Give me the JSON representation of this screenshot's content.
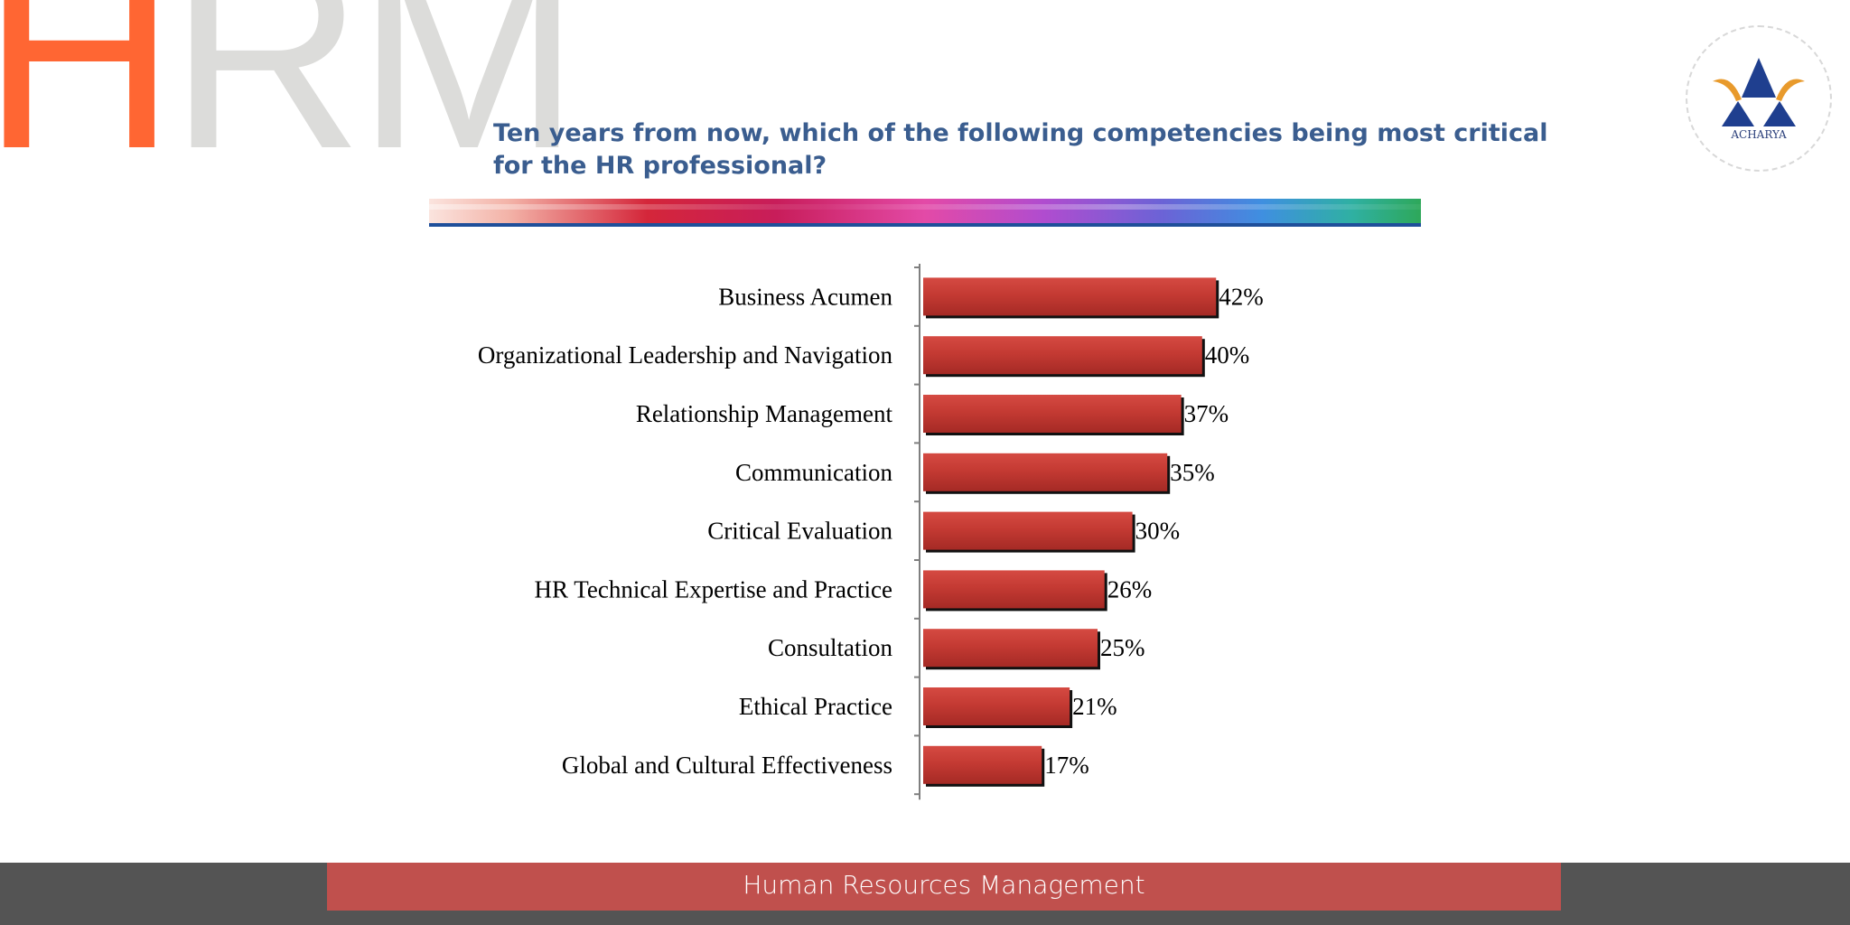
{
  "header": {
    "logo_h": "H",
    "logo_rm": "RM",
    "title": "Ten years from now, which of the following competencies being most critical for the HR professional?"
  },
  "badge": {
    "text": "ACHARYA",
    "icon": "acharya-emblem-icon"
  },
  "footer": {
    "text": "Human Resources Management"
  },
  "colors": {
    "bar": "#c0392b",
    "title": "#3a5d8f",
    "accent": "#ff6633",
    "footer_bg": "#545454",
    "footer_bar": "#c0504d"
  },
  "chart_data": {
    "type": "bar",
    "orientation": "horizontal",
    "categories": [
      "Business Acumen",
      "Organizational Leadership and Navigation",
      "Relationship Management",
      "Communication",
      "Critical Evaluation",
      "HR Technical Expertise and Practice",
      "Consultation",
      "Ethical Practice",
      "Global and Cultural Effectiveness"
    ],
    "values": [
      42,
      40,
      37,
      35,
      30,
      26,
      25,
      21,
      17
    ],
    "value_labels": [
      "42%",
      "40%",
      "37%",
      "35%",
      "30%",
      "26%",
      "25%",
      "21%",
      "17%"
    ],
    "xlim": [
      0,
      100
    ],
    "grid": false,
    "legend": "none"
  }
}
